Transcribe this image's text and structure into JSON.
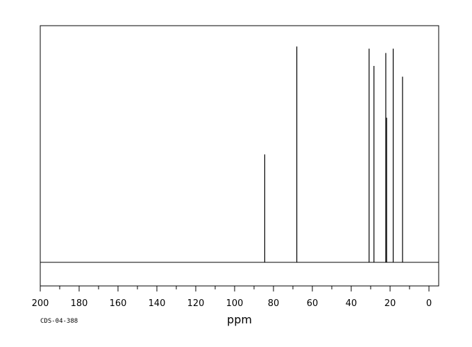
{
  "chart_data": {
    "type": "line",
    "title": "",
    "xlabel": "ppm",
    "ylabel": "",
    "xlim": [
      200,
      -5
    ],
    "x_reversed": true,
    "ylim": [
      0,
      1.0
    ],
    "grid": false,
    "x_ticks": [
      200,
      180,
      160,
      140,
      120,
      100,
      80,
      60,
      40,
      20,
      0
    ],
    "x_tick_labels": [
      "200",
      "180",
      "160",
      "140",
      "120",
      "100",
      "80",
      "60",
      "40",
      "20",
      "0"
    ],
    "peaks": [
      {
        "ppm": 84.5,
        "intensity": 0.5
      },
      {
        "ppm": 68.0,
        "intensity": 1.0
      },
      {
        "ppm": 30.8,
        "intensity": 0.99
      },
      {
        "ppm": 28.3,
        "intensity": 0.91
      },
      {
        "ppm": 22.2,
        "intensity": 0.97
      },
      {
        "ppm": 21.8,
        "intensity": 0.67
      },
      {
        "ppm": 18.4,
        "intensity": 0.99
      },
      {
        "ppm": 13.6,
        "intensity": 0.86
      }
    ],
    "code": "CDS-04-388"
  }
}
